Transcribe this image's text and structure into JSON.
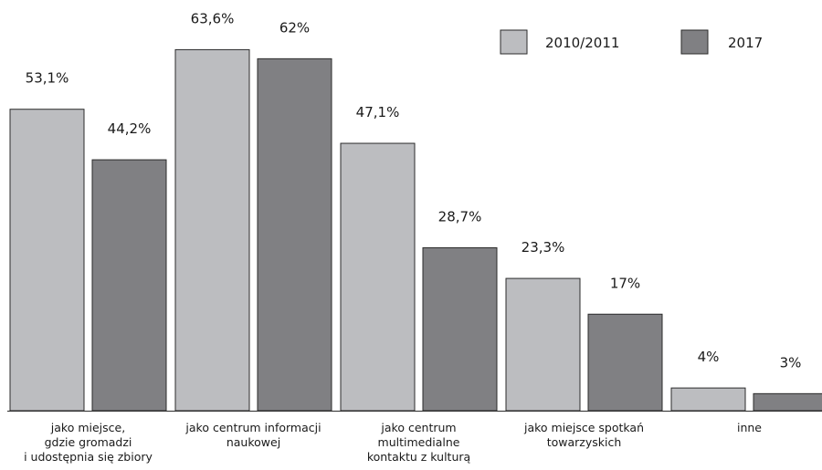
{
  "chart_data": {
    "type": "bar",
    "categories": [
      [
        "jako miejsce,",
        "gdzie gromadzi",
        "i udostępnia się zbiory"
      ],
      [
        "jako centrum informacji",
        "naukowej"
      ],
      [
        "jako centrum",
        "multimedialne",
        "kontaktu z kulturą"
      ],
      [
        "jako miejsce spotkań",
        "towarzyskich"
      ],
      [
        "inne"
      ]
    ],
    "series": [
      {
        "name": "2010/2011",
        "color": "#bcbdc0",
        "values": [
          53.1,
          63.6,
          47.1,
          23.3,
          4
        ],
        "labels": [
          "53,1%",
          "63,6%",
          "47,1%",
          "23,3%",
          "4%"
        ]
      },
      {
        "name": "2017",
        "color": "#808083",
        "values": [
          44.2,
          62,
          28.7,
          17,
          3
        ],
        "labels": [
          "44,2%",
          "62%",
          "28,7%",
          "17%",
          "3%"
        ]
      }
    ],
    "ylim": [
      0,
      70
    ],
    "grid": false,
    "legend_position": "top-right"
  }
}
